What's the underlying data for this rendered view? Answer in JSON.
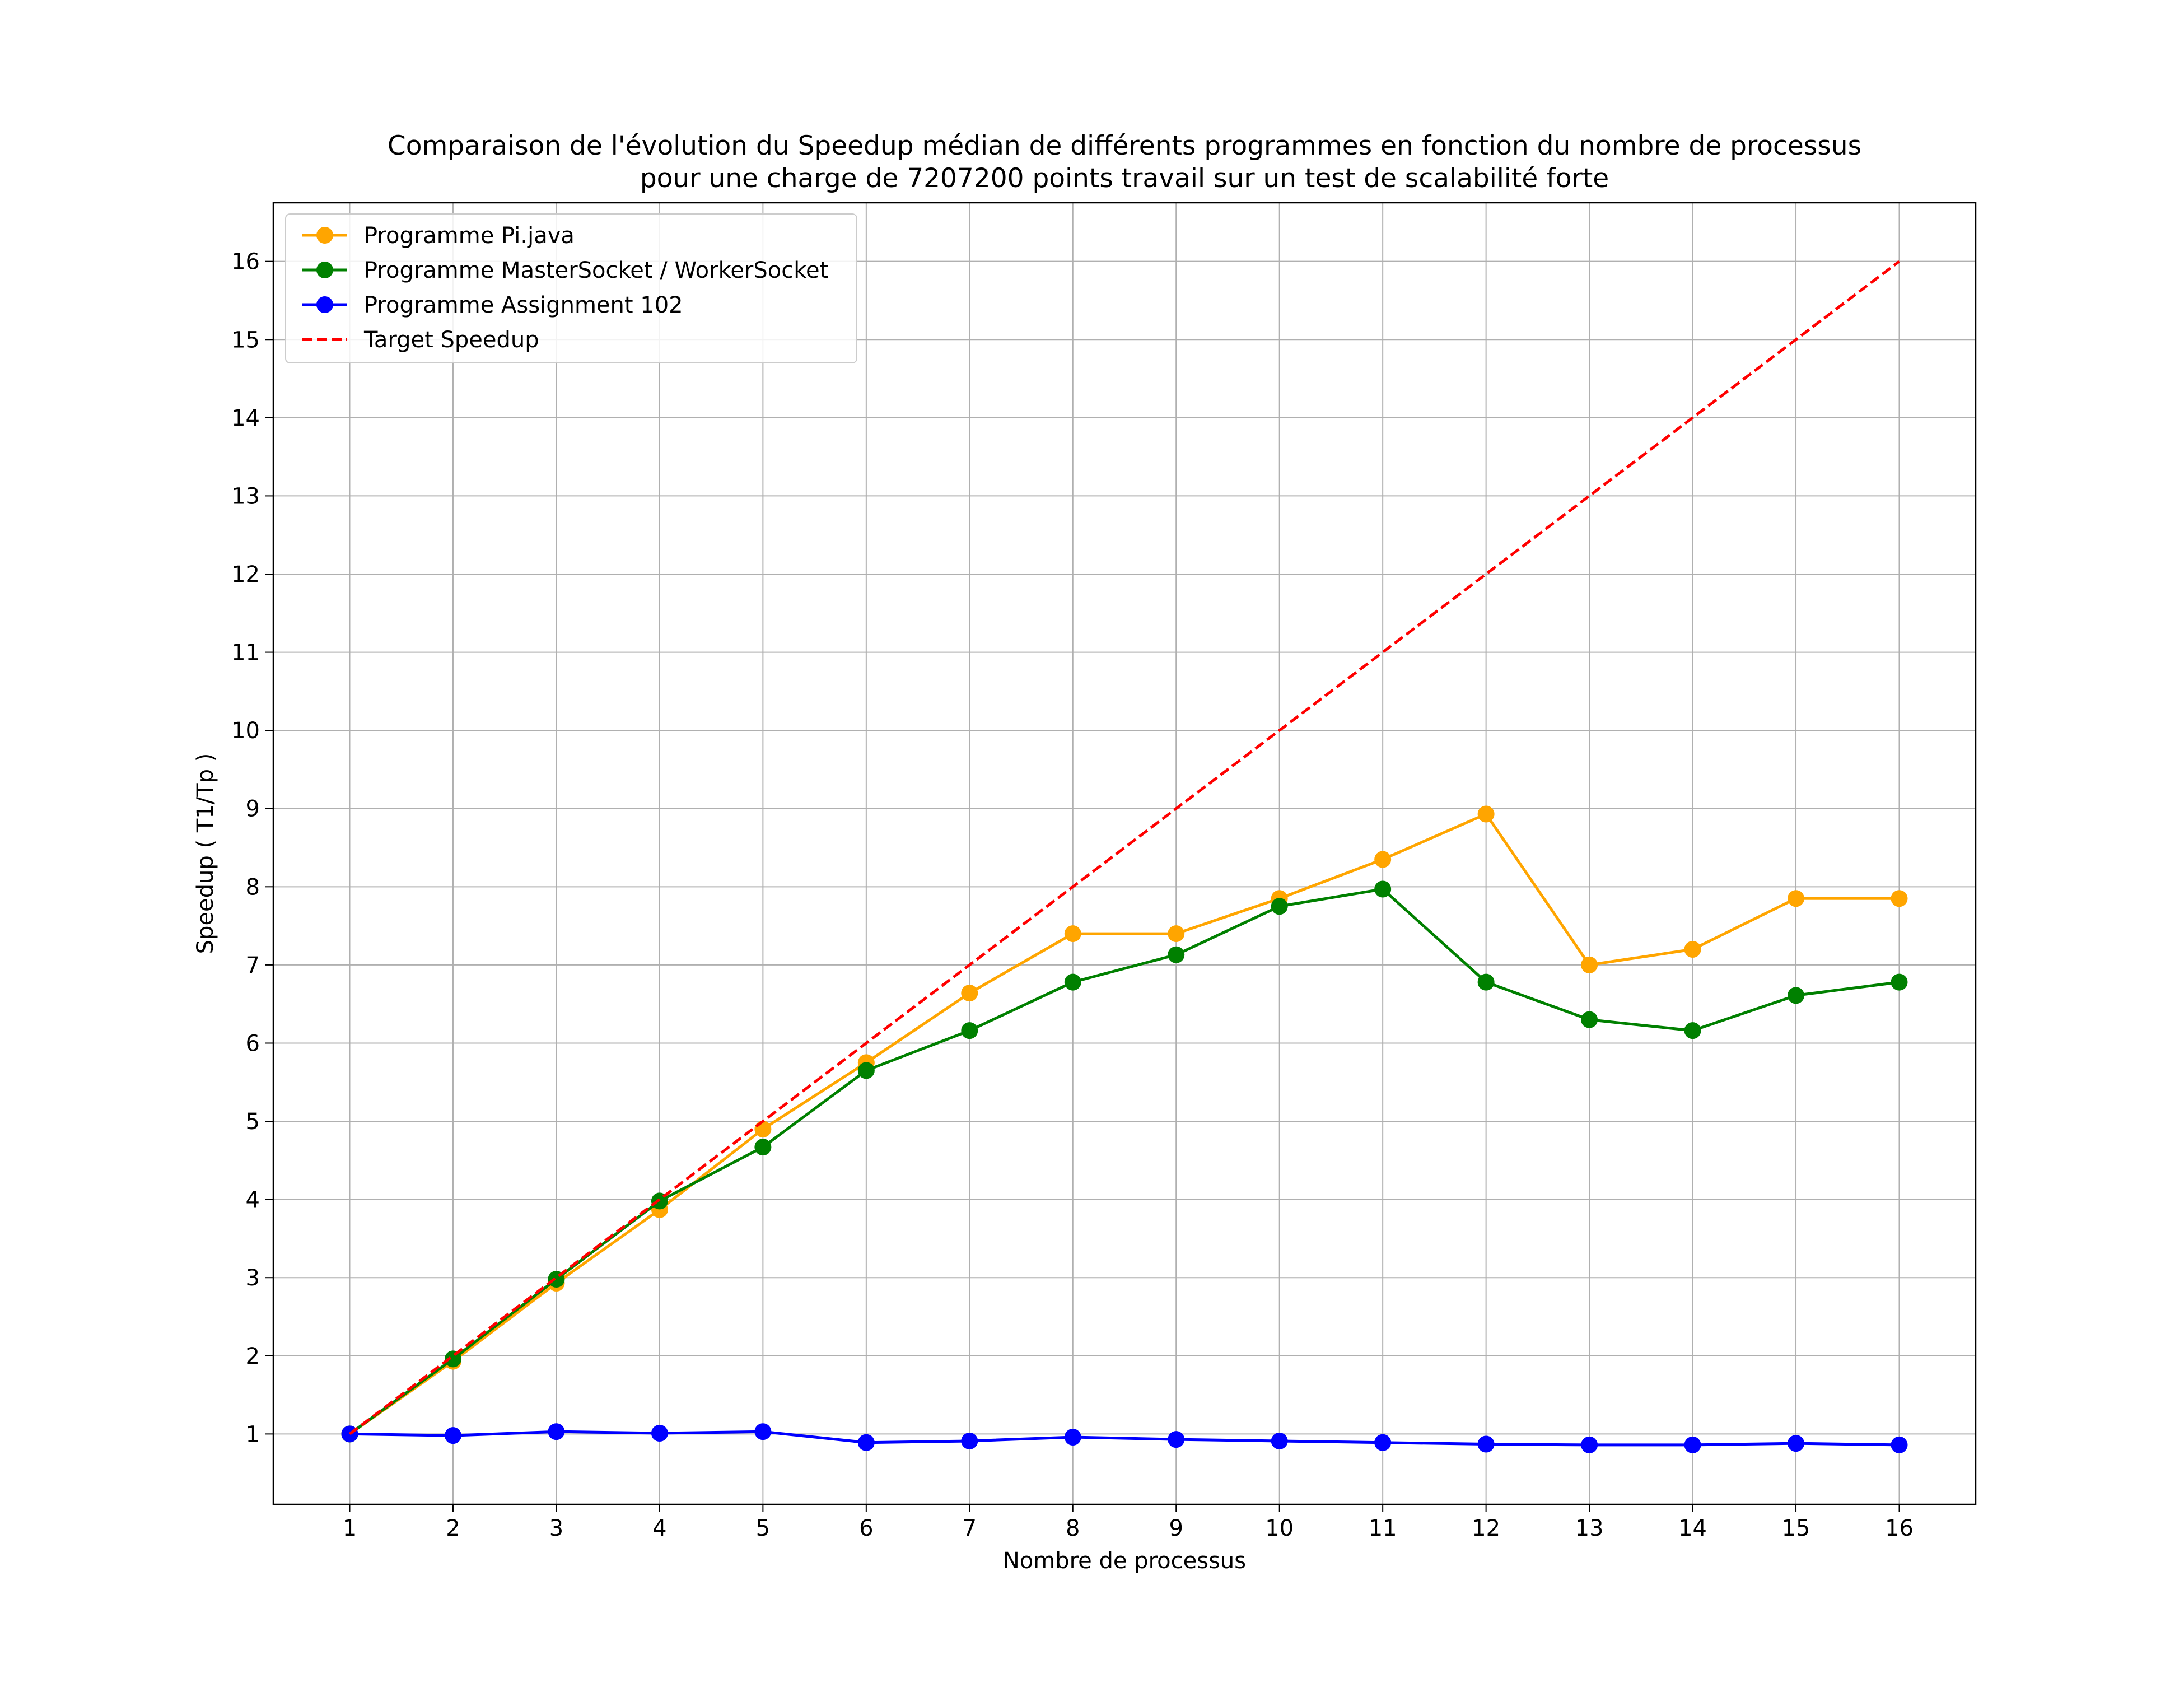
{
  "chart_data": {
    "type": "line",
    "title": [
      "Comparaison de l'évolution du Speedup médian de différents programmes en fonction du nombre de processus",
      "pour une charge de 7207200 points travail sur un test de scalabilité forte"
    ],
    "xlabel": "Nombre de processus",
    "ylabel": "Speedup ( T1/Tp )",
    "x": [
      1,
      2,
      3,
      4,
      5,
      6,
      7,
      8,
      9,
      10,
      11,
      12,
      13,
      14,
      15,
      16
    ],
    "x_ticks": [
      "1",
      "2",
      "3",
      "4",
      "5",
      "6",
      "7",
      "8",
      "9",
      "10",
      "11",
      "12",
      "13",
      "14",
      "15",
      "16"
    ],
    "y_ticks": [
      "1",
      "2",
      "3",
      "4",
      "5",
      "6",
      "7",
      "8",
      "9",
      "10",
      "11",
      "12",
      "13",
      "14",
      "15",
      "16"
    ],
    "xlim": [
      0.26,
      16.74
    ],
    "ylim": [
      0.1,
      16.75
    ],
    "grid": true,
    "legend_position": "top-left",
    "series": [
      {
        "name": "Programme Pi.java",
        "color": "#ffa500",
        "style": "solid",
        "marker": "circle",
        "values": [
          1.0,
          1.93,
          2.93,
          3.87,
          4.9,
          5.75,
          6.64,
          7.4,
          7.4,
          7.85,
          8.35,
          8.93,
          7.0,
          7.2,
          7.85,
          7.85
        ]
      },
      {
        "name": "Programme MasterSocket / WorkerSocket",
        "color": "#008000",
        "style": "solid",
        "marker": "circle",
        "values": [
          1.0,
          1.96,
          2.98,
          3.98,
          4.67,
          5.65,
          6.16,
          6.78,
          7.13,
          7.75,
          7.97,
          6.78,
          6.3,
          6.16,
          6.61,
          6.78
        ]
      },
      {
        "name": "Programme Assignment 102",
        "color": "#0000ff",
        "style": "solid",
        "marker": "circle",
        "values": [
          1.0,
          0.98,
          1.03,
          1.01,
          1.03,
          0.89,
          0.91,
          0.96,
          0.93,
          0.91,
          0.89,
          0.87,
          0.86,
          0.86,
          0.88,
          0.86
        ]
      },
      {
        "name": "Target Speedup",
        "color": "#ff0000",
        "style": "dashed",
        "marker": "none",
        "values": [
          1,
          2,
          3,
          4,
          5,
          6,
          7,
          8,
          9,
          10,
          11,
          12,
          13,
          14,
          15,
          16
        ]
      }
    ]
  }
}
